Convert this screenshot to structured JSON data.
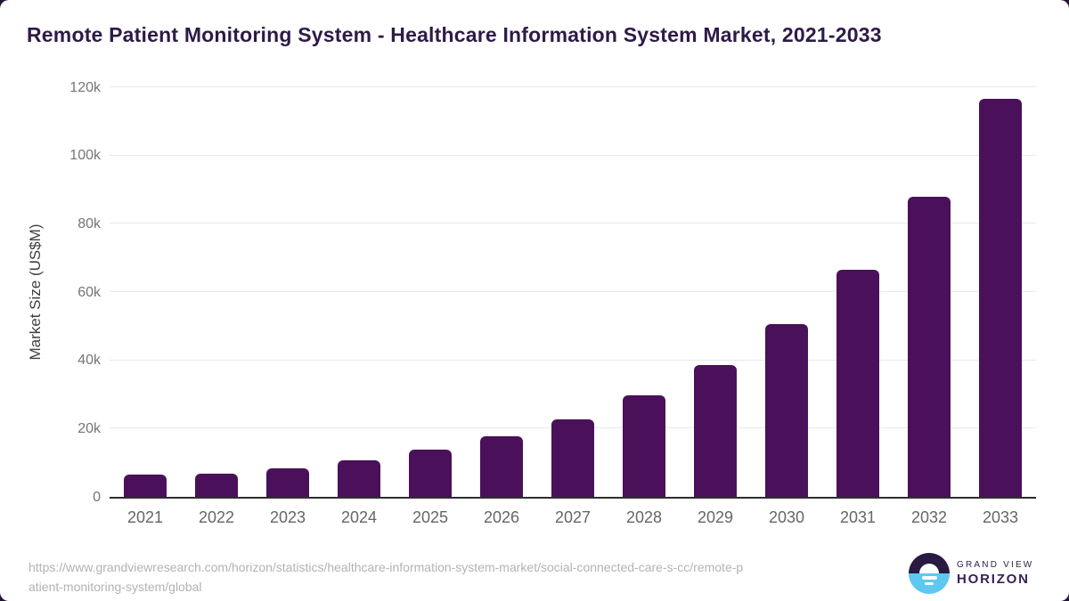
{
  "chart_data": {
    "type": "bar",
    "title": "Remote Patient Monitoring System - Healthcare Information System Market, 2021-2033",
    "categories": [
      "2021",
      "2022",
      "2023",
      "2024",
      "2025",
      "2026",
      "2027",
      "2028",
      "2029",
      "2030",
      "2031",
      "2032",
      "2033"
    ],
    "values": [
      6500,
      6800,
      8300,
      10700,
      13800,
      17700,
      22800,
      29800,
      38700,
      50700,
      66500,
      87900,
      116600
    ],
    "xlabel": "",
    "ylabel": "Market Size (US$M)",
    "ylim": [
      0,
      120000
    ],
    "yticks": [
      {
        "value": 0,
        "label": "0"
      },
      {
        "value": 20000,
        "label": "20k"
      },
      {
        "value": 40000,
        "label": "40k"
      },
      {
        "value": 60000,
        "label": "60k"
      },
      {
        "value": 80000,
        "label": "80k"
      },
      {
        "value": 100000,
        "label": "100k"
      },
      {
        "value": 120000,
        "label": "120k"
      }
    ],
    "grid": true,
    "legend": false,
    "bar_color": "#4a115a"
  },
  "footer": {
    "source_lines": [
      "https://www.grandviewresearch.com/horizon/statistics/healthcare-information-system-market/social-connected-care-s-cc/remote-p",
      "atient-monitoring-system/global"
    ],
    "brand": {
      "line1": "GRAND VIEW",
      "line2": "HORIZON"
    }
  },
  "colors": {
    "bar": "#4a115a",
    "title_text": "#2e1a47",
    "gridline": "#e9e9e9",
    "axis_line": "#2e2e2e",
    "tick_text": "#757575",
    "category_text": "#666666",
    "source_text": "#b3b3b3",
    "logo_dark": "#2a1a42",
    "logo_blue": "#5ec8f0",
    "page_corner": "#241536"
  }
}
